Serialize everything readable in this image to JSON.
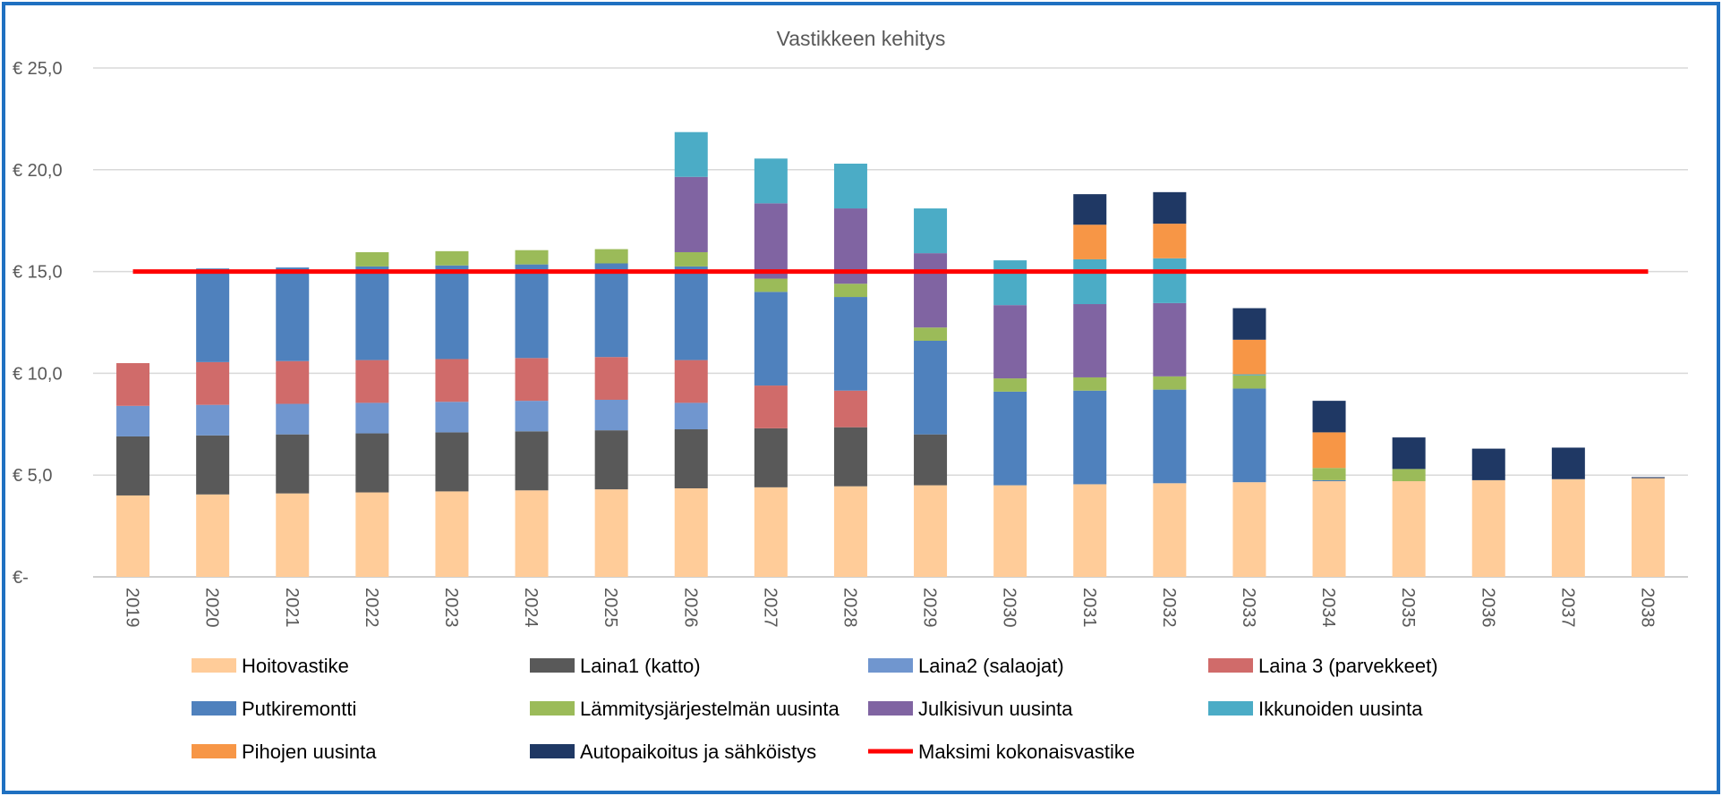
{
  "chart_data": {
    "type": "bar",
    "stacked": true,
    "title": "Vastikkeen kehitys",
    "xlabel": "",
    "ylabel": "",
    "ylim": [
      0,
      25
    ],
    "grid": true,
    "legend_position": "bottom",
    "y_ticks": [
      "€-",
      "€ 5,0",
      "€ 10,0",
      "€ 15,0",
      "€ 20,0",
      "€ 25,0"
    ],
    "y_tick_values": [
      0,
      5,
      10,
      15,
      20,
      25
    ],
    "categories": [
      "2019",
      "2020",
      "2021",
      "2022",
      "2023",
      "2024",
      "2025",
      "2026",
      "2027",
      "2028",
      "2029",
      "2030",
      "2031",
      "2032",
      "2033",
      "2034",
      "2035",
      "2036",
      "2037",
      "2038"
    ],
    "series": [
      {
        "name": "Hoitovastike",
        "color": "#FFCC99",
        "values": [
          4.0,
          4.05,
          4.1,
          4.15,
          4.2,
          4.25,
          4.3,
          4.35,
          4.4,
          4.45,
          4.5,
          4.5,
          4.55,
          4.6,
          4.65,
          4.7,
          4.7,
          4.75,
          4.8,
          4.85
        ]
      },
      {
        "name": "Laina1 (katto)",
        "color": "#595959",
        "values": [
          2.9,
          2.9,
          2.9,
          2.9,
          2.9,
          2.9,
          2.9,
          2.9,
          2.9,
          2.9,
          2.5,
          0,
          0,
          0,
          0,
          0,
          0,
          0,
          0,
          0
        ]
      },
      {
        "name": "Laina2 (salaojat)",
        "color": "#7096CF",
        "values": [
          1.5,
          1.5,
          1.5,
          1.5,
          1.5,
          1.5,
          1.5,
          1.3,
          0,
          0,
          0,
          0,
          0,
          0,
          0,
          0,
          0,
          0,
          0,
          0
        ]
      },
      {
        "name": "Laina 3 (parvekkeet)",
        "color": "#D06B6A",
        "values": [
          2.1,
          2.1,
          2.1,
          2.1,
          2.1,
          2.1,
          2.1,
          2.1,
          2.1,
          1.8,
          0,
          0,
          0,
          0,
          0,
          0,
          0,
          0,
          0,
          0
        ]
      },
      {
        "name": "Putkiremontti",
        "color": "#4F81BD",
        "values": [
          0,
          4.6,
          4.6,
          4.6,
          4.6,
          4.6,
          4.6,
          4.6,
          4.6,
          4.6,
          4.6,
          4.6,
          4.6,
          4.6,
          4.6,
          0.05,
          0,
          0,
          0,
          0
        ]
      },
      {
        "name": "Lämmitysjärjestelmän uusinta",
        "color": "#9BBB59",
        "values": [
          0,
          0,
          0,
          0.7,
          0.7,
          0.7,
          0.7,
          0.7,
          0.65,
          0.65,
          0.65,
          0.65,
          0.65,
          0.65,
          0.65,
          0.6,
          0.6,
          0,
          0,
          0
        ]
      },
      {
        "name": "Julkisivun uusinta",
        "color": "#8064A2",
        "values": [
          0,
          0,
          0,
          0,
          0,
          0,
          0,
          3.7,
          3.7,
          3.7,
          3.65,
          3.6,
          3.6,
          3.6,
          0,
          0,
          0,
          0,
          0,
          0
        ]
      },
      {
        "name": "Ikkunoiden uusinta",
        "color": "#4BACC6",
        "values": [
          0,
          0,
          0,
          0,
          0,
          0,
          0,
          2.2,
          2.2,
          2.2,
          2.2,
          2.2,
          2.2,
          2.2,
          0.05,
          0,
          0,
          0,
          0,
          0
        ]
      },
      {
        "name": "Pihojen uusinta",
        "color": "#F79646",
        "values": [
          0,
          0,
          0,
          0,
          0,
          0,
          0,
          0,
          0,
          0,
          0,
          0,
          1.7,
          1.7,
          1.7,
          1.75,
          0,
          0,
          0,
          0
        ]
      },
      {
        "name": "Autopaikoitus ja sähköistys",
        "color": "#1F3864",
        "values": [
          0,
          0,
          0,
          0,
          0,
          0,
          0,
          0,
          0,
          0,
          0,
          0,
          1.5,
          1.55,
          1.55,
          1.55,
          1.55,
          1.55,
          1.55,
          0.05
        ]
      }
    ],
    "line_series": {
      "name": "Maksimi kokonaisvastike",
      "color": "#FF0000",
      "value": 15.0
    }
  }
}
